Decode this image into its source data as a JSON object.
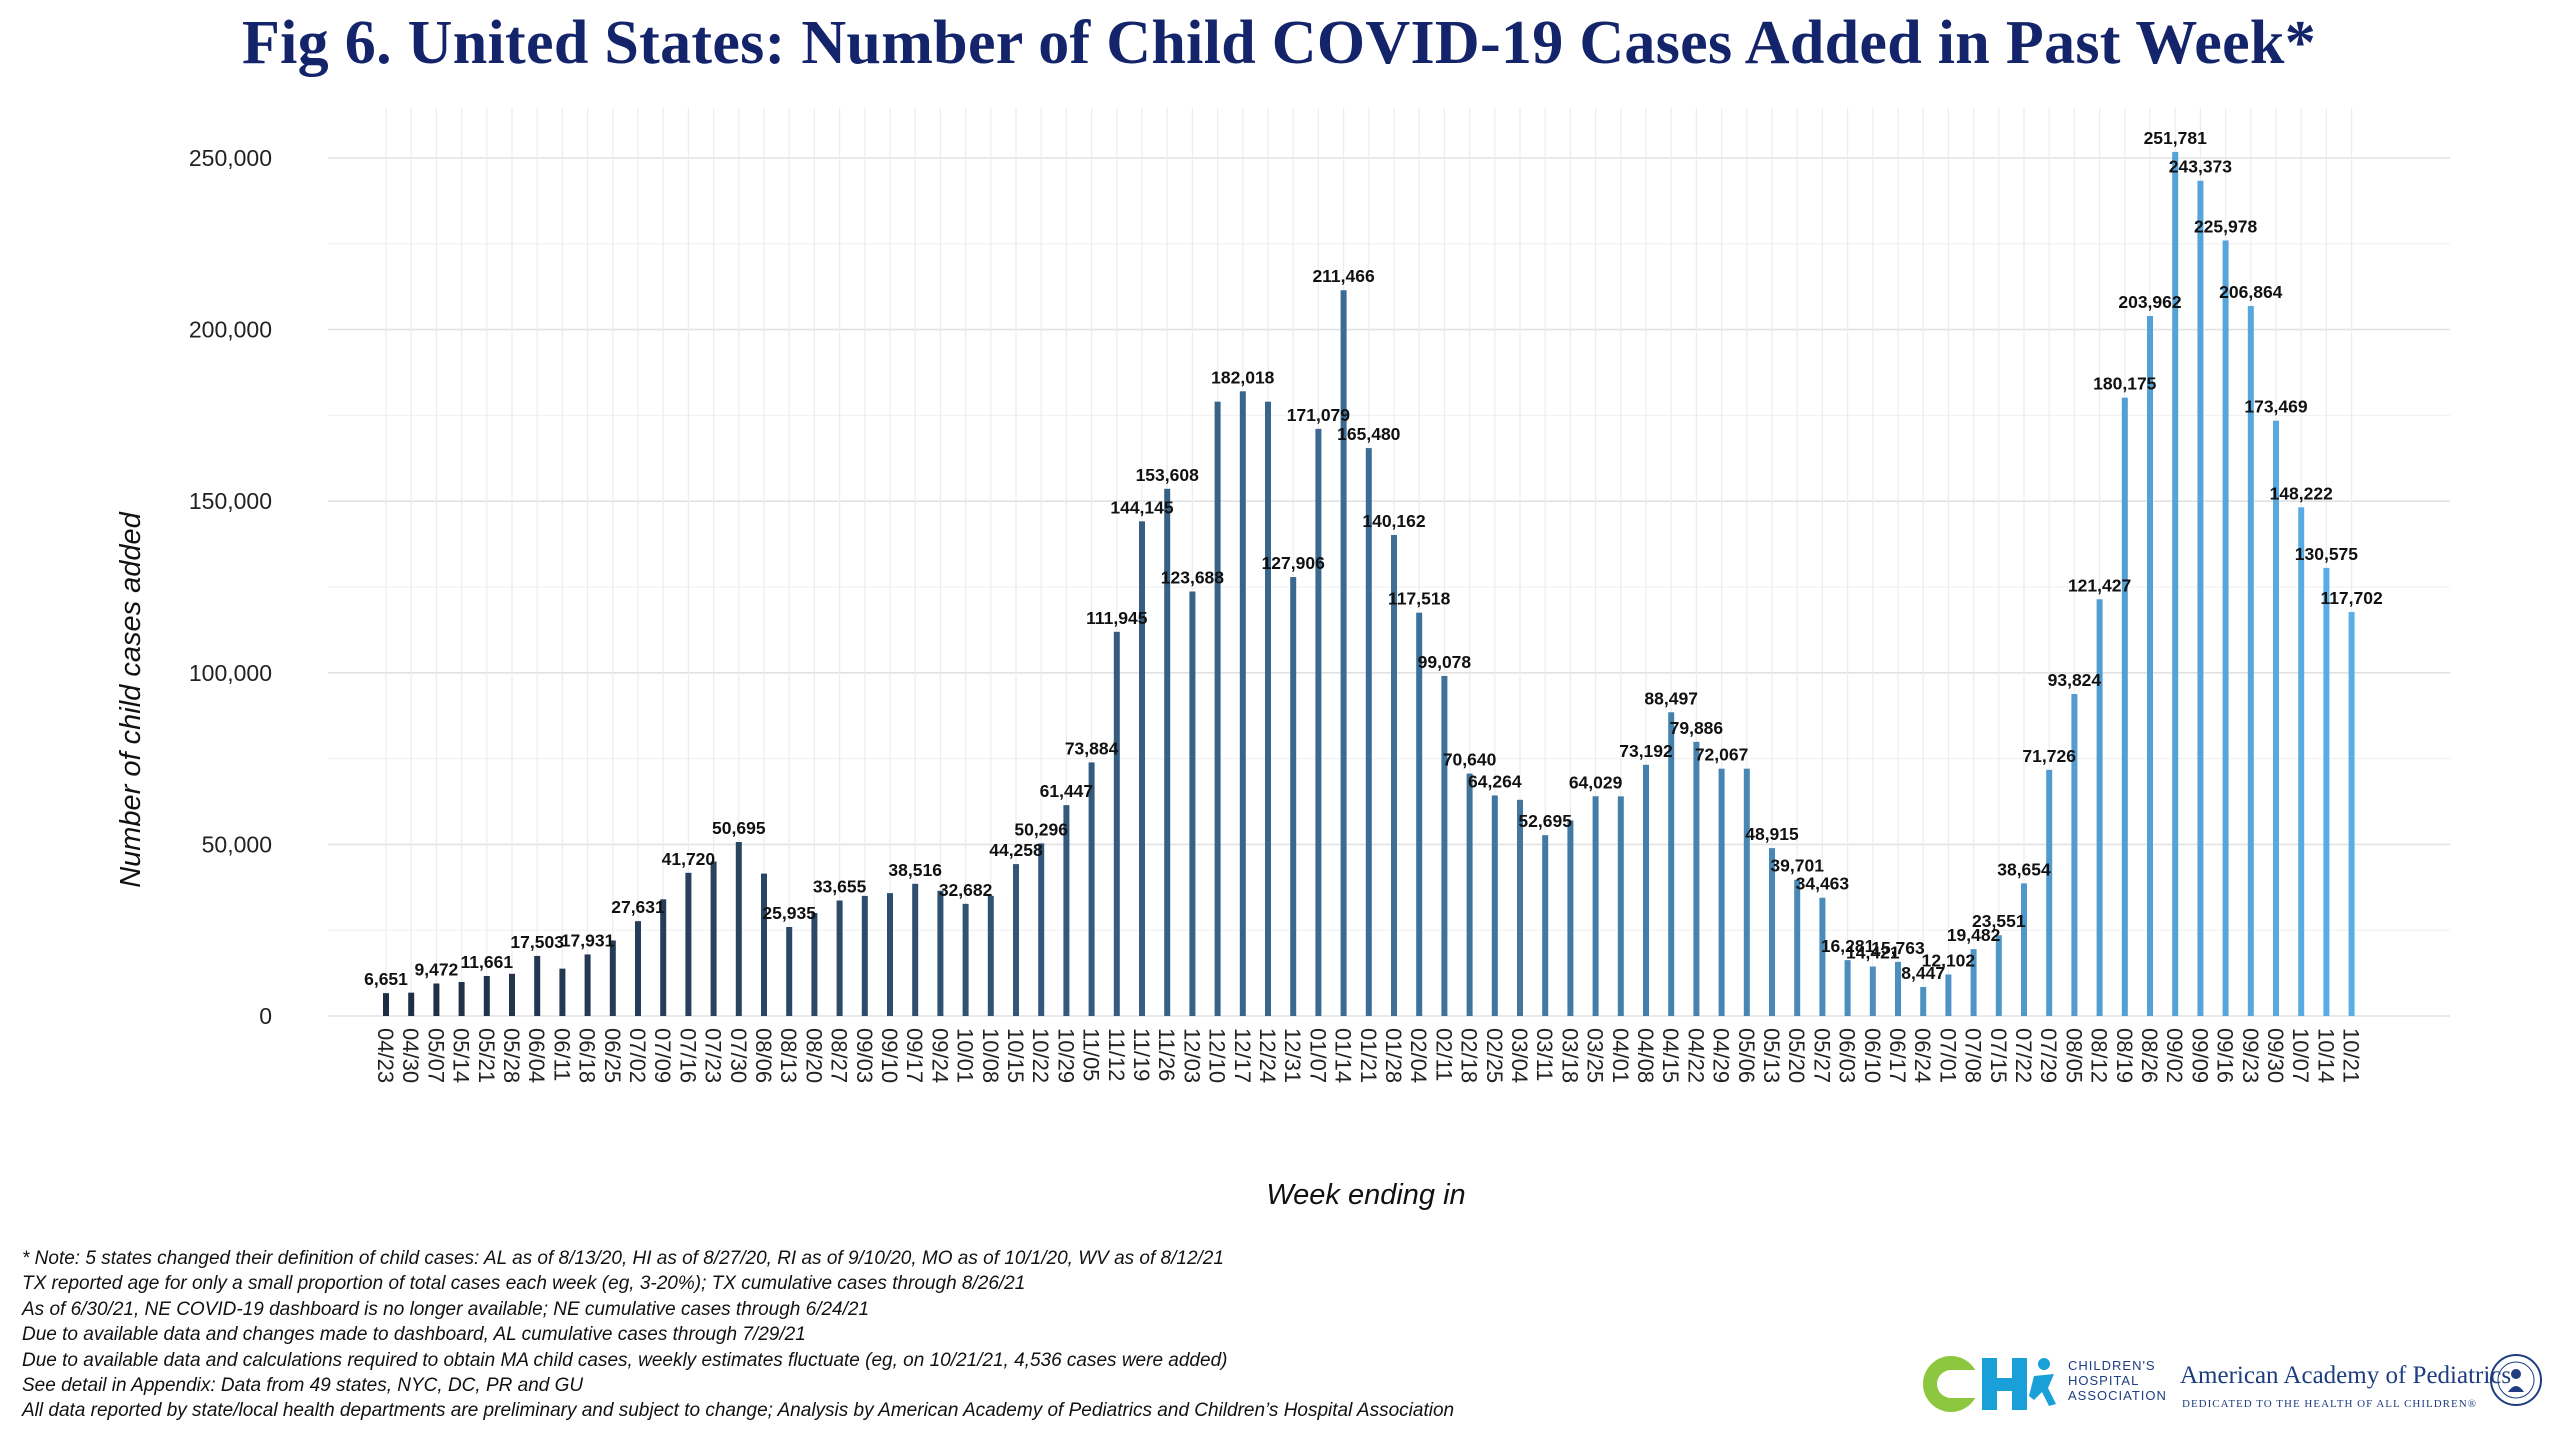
{
  "title": "Fig 6. United States: Number of Child COVID-19 Cases Added in Past Week*",
  "chart_data": {
    "type": "bar",
    "title": "Fig 6. United States: Number of Child COVID-19 Cases Added in Past Week*",
    "xlabel": "Week ending in",
    "ylabel": "Number of child cases added",
    "ylim": [
      0,
      260000
    ],
    "yticks": [
      0,
      50000,
      100000,
      150000,
      200000,
      250000
    ],
    "ytick_labels": [
      "0",
      "50,000",
      "100,000",
      "150,000",
      "200,000",
      "250,000"
    ],
    "grid": true,
    "color_start": "#1e2c44",
    "color_end": "#5aaee6",
    "categories": [
      "04/23",
      "04/30",
      "05/07",
      "05/14",
      "05/21",
      "05/28",
      "06/04",
      "06/11",
      "06/18",
      "06/25",
      "07/02",
      "07/09",
      "07/16",
      "07/23",
      "07/30",
      "08/06",
      "08/13",
      "08/20",
      "08/27",
      "09/03",
      "09/10",
      "09/17",
      "09/24",
      "10/01",
      "10/08",
      "10/15",
      "10/22",
      "10/29",
      "11/05",
      "11/12",
      "11/19",
      "11/26",
      "12/03",
      "12/10",
      "12/17",
      "12/24",
      "12/31",
      "01/07",
      "01/14",
      "01/21",
      "01/28",
      "02/04",
      "02/11",
      "02/18",
      "02/25",
      "03/04",
      "03/11",
      "03/18",
      "03/25",
      "04/01",
      "04/08",
      "04/15",
      "04/22",
      "04/29",
      "05/06",
      "05/13",
      "05/20",
      "05/27",
      "06/03",
      "06/10",
      "06/17",
      "06/24",
      "07/01",
      "07/08",
      "07/15",
      "07/22",
      "07/29",
      "08/05",
      "08/12",
      "08/19",
      "08/26",
      "09/02",
      "09/09",
      "09/16",
      "09/23",
      "09/30",
      "10/07",
      "10/14",
      "10/21"
    ],
    "values": [
      6651,
      6800,
      9472,
      9900,
      11661,
      12300,
      17503,
      13800,
      17931,
      22000,
      27631,
      34000,
      41720,
      45000,
      50695,
      41500,
      25935,
      30000,
      33655,
      35000,
      35800,
      38516,
      36500,
      32682,
      35000,
      44258,
      50296,
      61447,
      73884,
      111945,
      144145,
      153608,
      123688,
      179000,
      182018,
      179000,
      127906,
      171079,
      211466,
      165480,
      140162,
      117518,
      99078,
      70640,
      64264,
      63000,
      52695,
      57000,
      64029,
      64000,
      73192,
      88497,
      79886,
      72067,
      72067,
      48915,
      39701,
      34463,
      16281,
      14421,
      15763,
      8447,
      12102,
      19482,
      23551,
      38654,
      71726,
      93824,
      121427,
      180175,
      203962,
      251781,
      243373,
      225978,
      206864,
      173469,
      148222,
      130575,
      117702
    ],
    "data_labels": [
      "6,651",
      "",
      "9,472",
      "",
      "11,661",
      "",
      "17,503",
      "",
      "17,931",
      "",
      "27,631",
      "",
      "41,720",
      "",
      "50,695",
      "",
      "25,935",
      "",
      "33,655",
      "",
      "",
      "38,516",
      "",
      "32,682",
      "",
      "44,258",
      "50,296",
      "61,447",
      "73,884",
      "111,945",
      "144,145",
      "153,608",
      "123,688",
      "",
      "182,018",
      "",
      "127,906",
      "171,079",
      "211,466",
      "165,480",
      "140,162",
      "117,518",
      "99,078",
      "70,640",
      "64,264",
      "",
      "52,695",
      "",
      "64,029",
      "",
      "73,192",
      "88,497",
      "79,886",
      "72,067",
      "",
      "48,915",
      "39,701",
      "34,463",
      "16,281",
      "14,421",
      "15,763",
      "8,447",
      "12,102",
      "19,482",
      "23,551",
      "38,654",
      "71,726",
      "93,824",
      "121,427",
      "180,175",
      "203,962",
      "251,781",
      "243,373",
      "225,978",
      "206,864",
      "173,469",
      "148,222",
      "130,575",
      "117,702"
    ]
  },
  "notes": [
    "* Note: 5 states changed their definition of child cases: AL as of 8/13/20, HI as of 8/27/20, RI as of 9/10/20, MO as of 10/1/20, WV as of 8/12/21",
    "TX reported age for only a small proportion of total cases each week (eg, 3-20%); TX cumulative cases through 8/26/21",
    "As of 6/30/21, NE COVID-19 dashboard is no longer available; NE cumulative cases through 6/24/21",
    "Due to available data and changes made to dashboard, AL cumulative cases through 7/29/21",
    "Due to available data and calculations required to obtain MA child cases, weekly estimates fluctuate (eg, on 10/21/21, 4,536 cases were added)",
    "See detail in Appendix: Data from 49 states, NYC, DC, PR and GU",
    "All data reported by state/local health departments are preliminary and subject to change; Analysis by American Academy of Pediatrics and Children’s Hospital Association"
  ],
  "logos": {
    "cha_text": [
      "CHILDREN'S",
      "HOSPITAL",
      "ASSOCIATION"
    ],
    "aap_name": "American Academy of Pediatrics",
    "aap_tagline": "DEDICATED TO THE HEALTH OF ALL CHILDREN®"
  }
}
